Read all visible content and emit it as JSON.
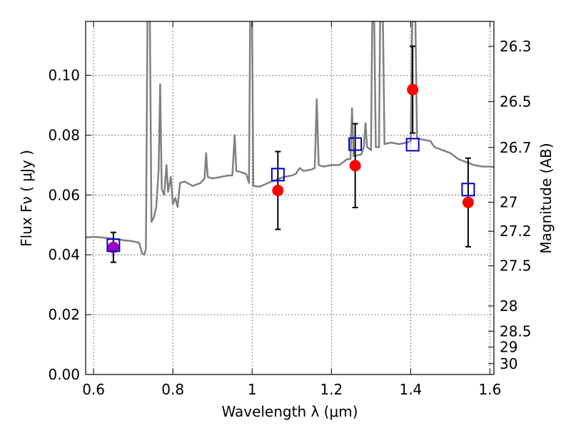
{
  "chart_data": {
    "type": "scatter",
    "title": "",
    "xlabel": "Wavelength  λ (μm)",
    "ylabel": "Flux  Fν ( μJy )",
    "y2label": "Magnitude (AB)",
    "xlim": [
      0.58,
      1.61
    ],
    "ylim": [
      0.0,
      0.118
    ],
    "grid": true,
    "x_ticks": [
      0.6,
      0.8,
      1.0,
      1.2,
      1.4,
      1.6
    ],
    "x_tick_labels": [
      "0.6",
      "0.8",
      "1",
      "1.2",
      "1.4",
      "1.6"
    ],
    "y_ticks": [
      0.0,
      0.02,
      0.04,
      0.06,
      0.08,
      0.1
    ],
    "y_tick_labels": [
      "0.00",
      "0.02",
      "0.04",
      "0.06",
      "0.08",
      "0.10"
    ],
    "y2_ticks": [
      26.3,
      26.5,
      26.7,
      27,
      27.2,
      27.5,
      28,
      28.5,
      29,
      30
    ],
    "y2_tick_labels": [
      "26.3",
      "26.5",
      "26.7",
      "27",
      "27.2",
      "27.5",
      "28",
      "28.5",
      "29",
      "30"
    ],
    "observed": {
      "color": "#ff0000",
      "points": [
        {
          "x": 0.65,
          "y": 0.0425,
          "err": 0.005
        },
        {
          "x": 1.065,
          "y": 0.0615,
          "err": 0.013
        },
        {
          "x": 1.26,
          "y": 0.0698,
          "err": 0.014
        },
        {
          "x": 1.405,
          "y": 0.0952,
          "err": 0.0145
        },
        {
          "x": 1.545,
          "y": 0.0575,
          "err": 0.0148
        }
      ]
    },
    "first_point_color": "#a000c0",
    "model_photometry": {
      "color": "#0000cc",
      "points": [
        {
          "x": 0.65,
          "y": 0.0432
        },
        {
          "x": 1.065,
          "y": 0.0668
        },
        {
          "x": 1.26,
          "y": 0.077
        },
        {
          "x": 1.405,
          "y": 0.0768
        },
        {
          "x": 1.545,
          "y": 0.0618
        }
      ]
    },
    "model_spectrum": {
      "color": "#808080",
      "points": [
        [
          0.58,
          0.0458
        ],
        [
          0.6,
          0.046
        ],
        [
          0.62,
          0.0458
        ],
        [
          0.64,
          0.0455
        ],
        [
          0.66,
          0.0452
        ],
        [
          0.68,
          0.0448
        ],
        [
          0.7,
          0.0445
        ],
        [
          0.715,
          0.044
        ],
        [
          0.722,
          0.0405
        ],
        [
          0.728,
          0.04
        ],
        [
          0.732,
          0.042
        ],
        [
          0.736,
          0.118
        ],
        [
          0.742,
          0.118
        ],
        [
          0.746,
          0.051
        ],
        [
          0.752,
          0.0525
        ],
        [
          0.758,
          0.056
        ],
        [
          0.764,
          0.068
        ],
        [
          0.768,
          0.097
        ],
        [
          0.772,
          0.062
        ],
        [
          0.778,
          0.06
        ],
        [
          0.784,
          0.07
        ],
        [
          0.788,
          0.061
        ],
        [
          0.795,
          0.066
        ],
        [
          0.8,
          0.057
        ],
        [
          0.806,
          0.059
        ],
        [
          0.812,
          0.056
        ],
        [
          0.818,
          0.064
        ],
        [
          0.83,
          0.0645
        ],
        [
          0.85,
          0.063
        ],
        [
          0.87,
          0.064
        ],
        [
          0.88,
          0.0655
        ],
        [
          0.884,
          0.074
        ],
        [
          0.888,
          0.066
        ],
        [
          0.9,
          0.0655
        ],
        [
          0.92,
          0.066
        ],
        [
          0.94,
          0.0665
        ],
        [
          0.95,
          0.0665
        ],
        [
          0.956,
          0.08
        ],
        [
          0.96,
          0.068
        ],
        [
          0.975,
          0.0675
        ],
        [
          0.985,
          0.067
        ],
        [
          0.992,
          0.064
        ],
        [
          0.995,
          0.118
        ],
        [
          1.0,
          0.118
        ],
        [
          1.003,
          0.063
        ],
        [
          1.02,
          0.0628
        ],
        [
          1.04,
          0.064
        ],
        [
          1.06,
          0.065
        ],
        [
          1.08,
          0.066
        ],
        [
          1.1,
          0.0665
        ],
        [
          1.11,
          0.067
        ],
        [
          1.12,
          0.069
        ],
        [
          1.13,
          0.068
        ],
        [
          1.15,
          0.0685
        ],
        [
          1.158,
          0.069
        ],
        [
          1.163,
          0.092
        ],
        [
          1.168,
          0.07
        ],
        [
          1.18,
          0.0695
        ],
        [
          1.2,
          0.07
        ],
        [
          1.22,
          0.07
        ],
        [
          1.24,
          0.072
        ],
        [
          1.248,
          0.072
        ],
        [
          1.252,
          0.089
        ],
        [
          1.256,
          0.073
        ],
        [
          1.275,
          0.0735
        ],
        [
          1.282,
          0.076
        ],
        [
          1.286,
          0.084
        ],
        [
          1.29,
          0.076
        ],
        [
          1.3,
          0.075
        ],
        [
          1.303,
          0.118
        ],
        [
          1.308,
          0.118
        ],
        [
          1.312,
          0.076
        ],
        [
          1.32,
          0.076
        ],
        [
          1.323,
          0.118
        ],
        [
          1.33,
          0.118
        ],
        [
          1.334,
          0.077
        ],
        [
          1.35,
          0.0775
        ],
        [
          1.37,
          0.077
        ],
        [
          1.39,
          0.0775
        ],
        [
          1.4,
          0.078
        ],
        [
          1.404,
          0.118
        ],
        [
          1.412,
          0.118
        ],
        [
          1.416,
          0.079
        ],
        [
          1.43,
          0.0785
        ],
        [
          1.45,
          0.078
        ],
        [
          1.46,
          0.076
        ],
        [
          1.48,
          0.075
        ],
        [
          1.5,
          0.074
        ],
        [
          1.52,
          0.072
        ],
        [
          1.54,
          0.071
        ],
        [
          1.56,
          0.07
        ],
        [
          1.58,
          0.0695
        ],
        [
          1.6,
          0.0695
        ],
        [
          1.61,
          0.0693
        ]
      ]
    }
  }
}
